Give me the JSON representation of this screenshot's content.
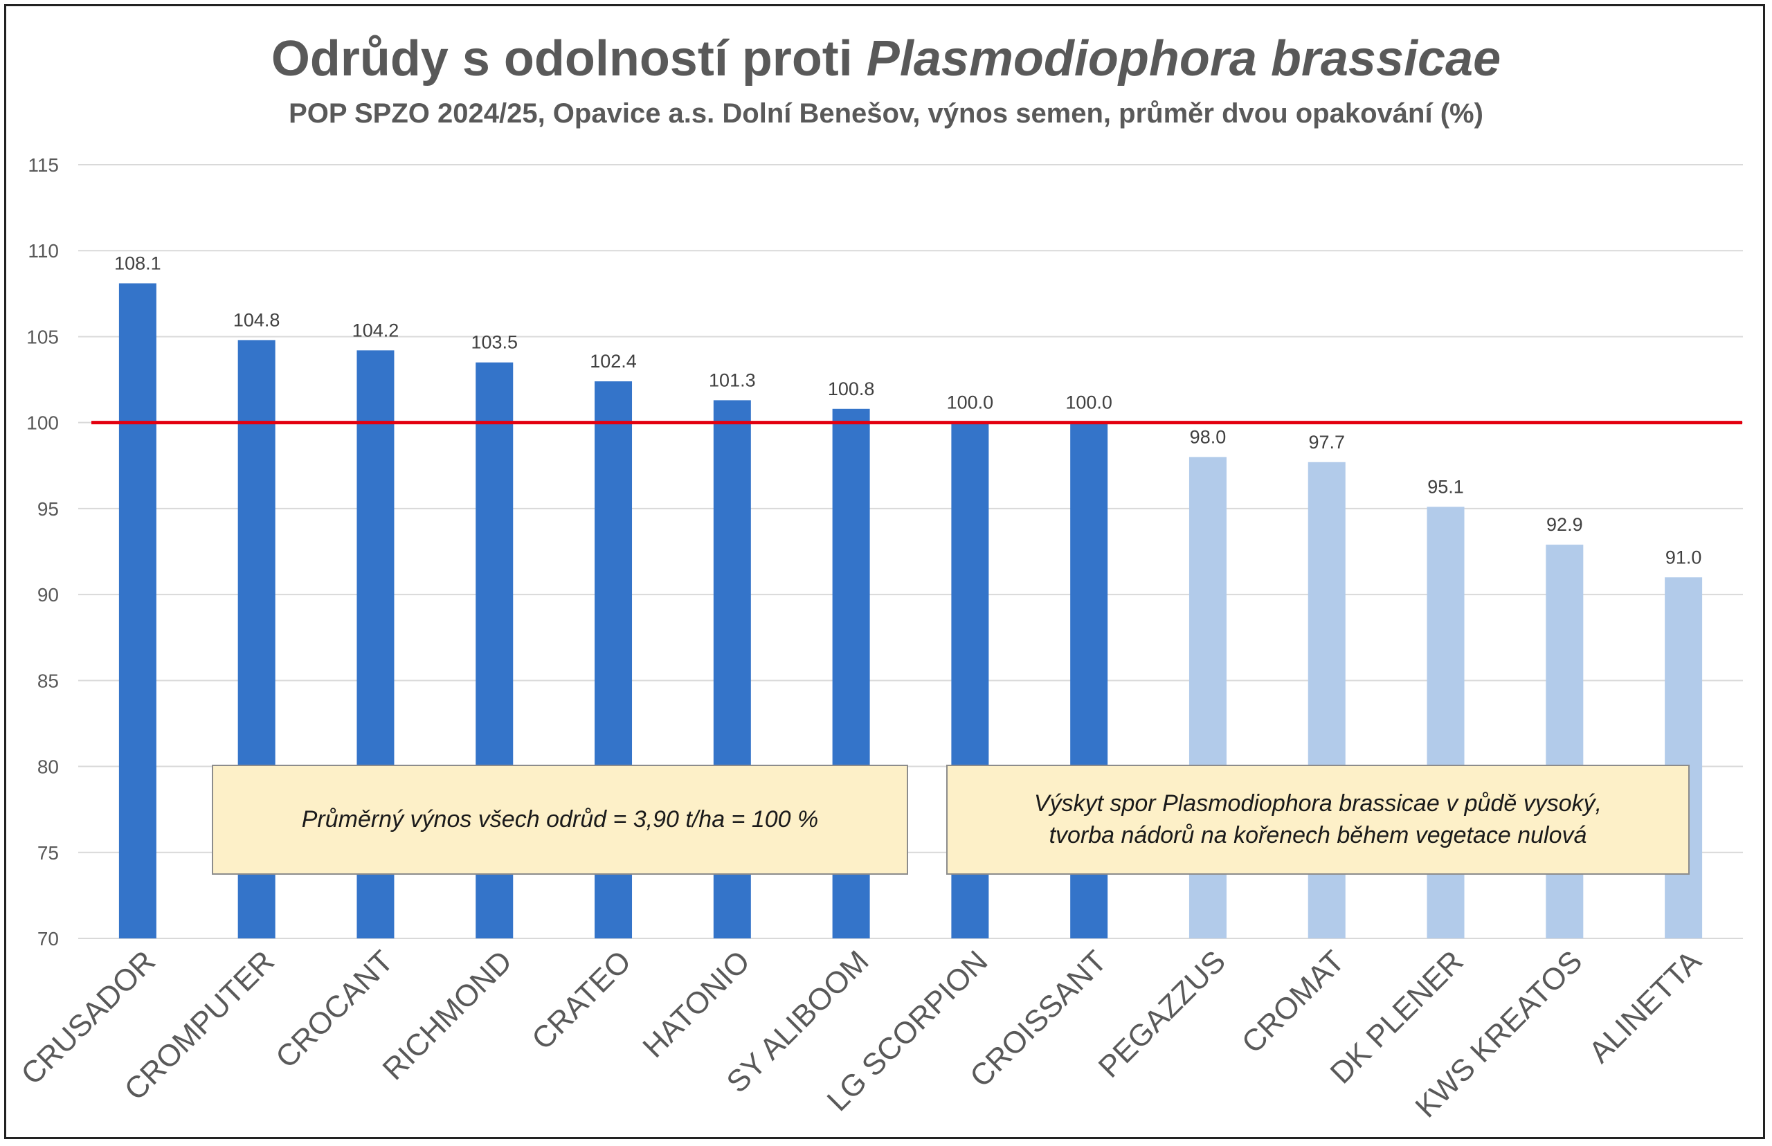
{
  "chart_data": {
    "type": "bar",
    "title_main": "Odrůdy s odolností proti",
    "title_italic": "Plasmodiophora brassicae",
    "subtitle": "POP SPZO 2024/25, Opavice a.s. Dolní Benešov, výnos semen, průměr dvou opakování (%)",
    "xlabel": "",
    "ylabel": "",
    "ylim": [
      70,
      115
    ],
    "yticks": [
      70,
      75,
      80,
      85,
      90,
      95,
      100,
      105,
      110,
      115
    ],
    "grid": true,
    "reference_line": {
      "value": 100,
      "color": "#e3000f"
    },
    "categories": [
      "CRUSADOR",
      "CROMPUTER",
      "CROCANT",
      "RICHMOND",
      "CRATEO",
      "HATONIO",
      "SY ALIBOOM",
      "LG SCORPION",
      "CROISSANT",
      "PEGAZZUS",
      "CROMAT",
      "DK PLENER",
      "KWS KREATOS",
      "ALINETTA"
    ],
    "values": [
      108.1,
      104.8,
      104.2,
      103.5,
      102.4,
      101.3,
      100.8,
      100.0,
      100.0,
      98.0,
      97.7,
      95.1,
      92.9,
      91.0
    ],
    "value_labels": [
      "108.1",
      "104.8",
      "104.2",
      "103.5",
      "102.4",
      "101.3",
      "100.8",
      "100.0",
      "100.0",
      "98.0",
      "97.7",
      "95.1",
      "92.9",
      "91.0"
    ],
    "bar_colors": {
      "above_or_equal_100": "#3474c9",
      "below_100": "#b2cbea"
    },
    "annotations": [
      {
        "lines": [
          "Průměrný výnos všech odrůd = 3,90 t/ha = 100 %"
        ]
      },
      {
        "lines": [
          "Výskyt spor Plasmodiophora brassicae v půdě vysoký,",
          "tvorba nádorů na kořenech během vegetace nulová"
        ]
      }
    ]
  }
}
